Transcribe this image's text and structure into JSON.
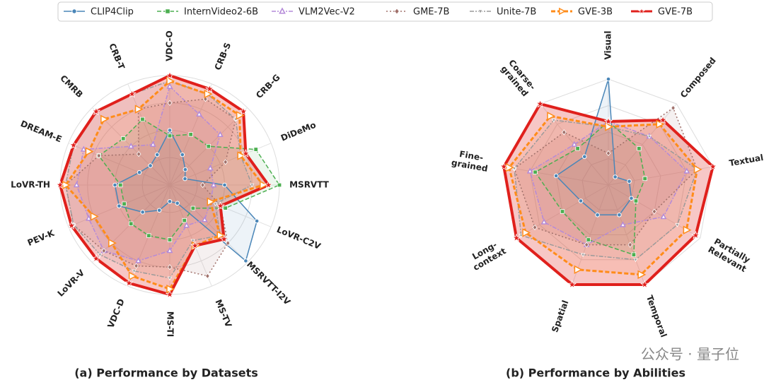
{
  "legend": {
    "series": [
      {
        "name": "CLIP4Clip",
        "color": "#4a86b8",
        "marker": "circle",
        "dash": "solid"
      },
      {
        "name": "InternVideo2-6B",
        "color": "#4caf50",
        "marker": "square",
        "dash": "dashed"
      },
      {
        "name": "VLM2Vec-V2",
        "color": "#b48ad8",
        "marker": "triangle",
        "dash": "dashdot"
      },
      {
        "name": "GME-7B",
        "color": "#a0706a",
        "marker": "diamond",
        "dash": "dotted"
      },
      {
        "name": "Unite-7B",
        "color": "#9a9a9a",
        "marker": "triangle-down",
        "dash": "dashdot"
      },
      {
        "name": "GVE-3B",
        "color": "#ff8c1a",
        "marker": "triangle-right",
        "dash": "dashed"
      },
      {
        "name": "GVE-7B",
        "color": "#e0201c",
        "marker": "star",
        "dash": "solid"
      }
    ]
  },
  "chart_data": [
    {
      "type": "radar",
      "title": "(a) Performance by Datasets",
      "grid": true,
      "grid_shape": "circle",
      "rlim": [
        0,
        1
      ],
      "rticks": [
        0.25,
        0.5,
        0.75,
        1
      ],
      "categories": [
        "VDC-O",
        "CRB-S",
        "CRB-G",
        "DiDeMo",
        "MSRVTT",
        "LoVR-C2V",
        "MSRVTT-I2V",
        "MS-TV",
        "MS-TI",
        "VDC-D",
        "LoVR-V",
        "PEV-K",
        "LoVR-TH",
        "DREAM-E",
        "CMRB",
        "CRB-T"
      ],
      "series": [
        {
          "values": [
            0.5,
            0.3,
            0.2,
            0.15,
            0.5,
            0.86,
            0.98,
            0.18,
            0.15,
            0.25,
            0.35,
            0.5,
            0.5,
            0.3,
            0.25,
            0.3
          ]
        },
        {
          "values": [
            0.45,
            0.5,
            0.5,
            0.85,
            1.0,
            0.55,
            0.3,
            0.35,
            0.5,
            0.5,
            0.5,
            0.45,
            0.45,
            0.7,
            0.6,
            0.65
          ]
        },
        {
          "values": [
            0.9,
            0.7,
            0.65,
            0.4,
            0.4,
            0.4,
            0.45,
            0.4,
            0.6,
            0.75,
            0.85,
            0.8,
            0.85,
            0.85,
            0.5,
            0.4
          ]
        },
        {
          "values": [
            0.75,
            0.85,
            0.85,
            0.55,
            0.3,
            0.5,
            0.75,
            0.9,
            0.75,
            0.8,
            0.85,
            0.95,
            0.95,
            0.7,
            0.4,
            0.75
          ]
        },
        {
          "values": [
            0.95,
            0.9,
            0.85,
            0.7,
            0.75,
            0.45,
            0.65,
            0.55,
            0.85,
            0.85,
            0.9,
            0.95,
            0.95,
            0.95,
            0.95,
            0.9
          ]
        },
        {
          "values": [
            0.95,
            0.9,
            0.9,
            0.7,
            0.85,
            0.4,
            0.65,
            0.6,
            0.95,
            0.9,
            0.75,
            0.75,
            0.95,
            0.8,
            0.85,
            0.75
          ]
        },
        {
          "values": [
            1.0,
            0.95,
            0.95,
            0.75,
            0.9,
            0.5,
            0.7,
            0.6,
            1.0,
            0.97,
            0.95,
            0.97,
            1.0,
            0.95,
            0.95,
            0.9
          ]
        }
      ]
    },
    {
      "type": "radar",
      "title": "(b) Performance by Abilities",
      "grid": true,
      "grid_shape": "polygon",
      "rlim": [
        0,
        1
      ],
      "rticks": [
        0.25,
        0.5,
        0.75,
        1
      ],
      "categories": [
        "Visual",
        "Composed",
        "Textual",
        "Partially\nRelevant",
        "Temporal",
        "Spatial",
        "Long-\ncontext",
        "Fine-\ngrained",
        "Coarse-\ngrained"
      ],
      "series": [
        {
          "values": [
            1.0,
            0.1,
            0.2,
            0.25,
            0.3,
            0.3,
            0.3,
            0.5,
            0.35
          ]
        },
        {
          "values": [
            0.6,
            0.45,
            0.35,
            0.3,
            0.7,
            0.55,
            0.5,
            0.7,
            0.45
          ]
        },
        {
          "values": [
            0.6,
            0.6,
            0.75,
            0.6,
            0.4,
            0.6,
            0.7,
            0.75,
            0.5
          ]
        },
        {
          "values": [
            0.3,
            0.95,
            0.85,
            0.5,
            0.6,
            0.6,
            0.8,
            0.9,
            0.65
          ]
        },
        {
          "values": [
            0.55,
            0.6,
            0.85,
            0.75,
            0.75,
            0.7,
            0.95,
            0.9,
            0.8
          ]
        },
        {
          "values": [
            0.55,
            0.75,
            0.85,
            0.85,
            0.9,
            0.85,
            0.9,
            0.95,
            0.85
          ]
        },
        {
          "values": [
            0.6,
            0.8,
            1.0,
            0.95,
            1.0,
            1.0,
            1.0,
            1.0,
            1.0
          ]
        }
      ]
    }
  ],
  "watermark": "公众号 · 量子位"
}
